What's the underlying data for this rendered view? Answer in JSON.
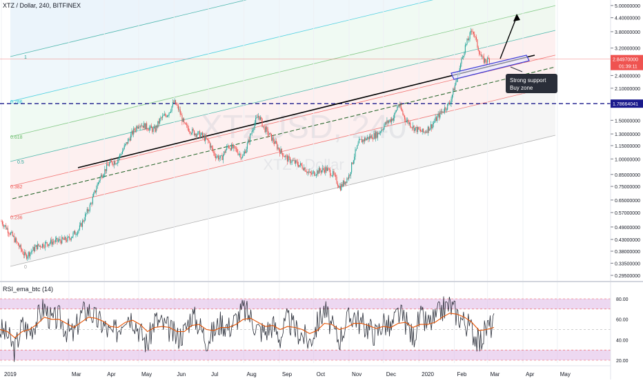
{
  "header": {
    "symbol_title": "XTZ / Dollar, 240, BITFINEX",
    "rsi_title": "RSI_ema_btc (14)"
  },
  "colors": {
    "candle_up": "#26a69a",
    "candle_down": "#ef5350",
    "support_box": "#3d3dd6",
    "dashed_support": "#1a1a8c",
    "rsi_line": "#2a2e39",
    "rsi_ema": "#e65100",
    "rsi_band": "#e1bee7"
  },
  "chart_data": [
    {
      "type": "candlestick",
      "title": "XTZ / Dollar, 240, BITFINEX",
      "watermark": "XTZUSD, 240",
      "watermark_sub": "XTZ / Dollar",
      "scale": "log",
      "ylim": [
        0.28,
        5.6
      ],
      "x_tick_labels": [
        "2019",
        "Mar",
        "Apr",
        "May",
        "Jun",
        "Jul",
        "Aug",
        "Sep",
        "Oct",
        "Nov",
        "Dec",
        "2020",
        "Feb",
        "Mar",
        "Apr",
        "May"
      ],
      "y_tick_labels": [
        "5.00000000",
        "4.40000000",
        "3.80000000",
        "3.20000000",
        "2.80000000",
        "2.40000000",
        "2.10000000",
        "1.80000000",
        "1.50000000",
        "1.30000000",
        "1.15000000",
        "1.00000000",
        "0.85000000",
        "0.75000000",
        "0.65000000",
        "0.57000000",
        "0.49000000",
        "0.43000000",
        "0.38000000",
        "0.33500000",
        "0.29500000"
      ],
      "last_price": "2.84970000",
      "countdown": "01:39:11",
      "horizontal_level": "1.78664041",
      "fib_levels": [
        "0",
        "0.236",
        "0.382",
        "0.5",
        "0.618",
        "0.786",
        "1",
        "1.272",
        "1.414"
      ],
      "annotation": "Strong support\nBuy zone",
      "price_path": [
        [
          "2019-01-01",
          0.52
        ],
        [
          "2019-01-10",
          0.45
        ],
        [
          "2019-01-22",
          0.36
        ],
        [
          "2019-02-01",
          0.4
        ],
        [
          "2019-02-15",
          0.42
        ],
        [
          "2019-02-28",
          0.43
        ],
        [
          "2019-03-10",
          0.48
        ],
        [
          "2019-03-20",
          0.62
        ],
        [
          "2019-03-28",
          0.82
        ],
        [
          "2019-04-05",
          0.95
        ],
        [
          "2019-04-12",
          0.98
        ],
        [
          "2019-04-18",
          1.12
        ],
        [
          "2019-04-25",
          1.3
        ],
        [
          "2019-05-01",
          1.45
        ],
        [
          "2019-05-08",
          1.4
        ],
        [
          "2019-05-15",
          1.35
        ],
        [
          "2019-05-20",
          1.52
        ],
        [
          "2019-05-27",
          1.62
        ],
        [
          "2019-06-01",
          1.82
        ],
        [
          "2019-06-05",
          1.68
        ],
        [
          "2019-06-10",
          1.42
        ],
        [
          "2019-06-18",
          1.32
        ],
        [
          "2019-06-25",
          1.28
        ],
        [
          "2019-07-01",
          1.2
        ],
        [
          "2019-07-06",
          1.05
        ],
        [
          "2019-07-12",
          1.0
        ],
        [
          "2019-07-18",
          1.15
        ],
        [
          "2019-07-25",
          1.1
        ],
        [
          "2019-07-31",
          1.02
        ],
        [
          "2019-08-05",
          1.2
        ],
        [
          "2019-08-10",
          1.45
        ],
        [
          "2019-08-14",
          1.58
        ],
        [
          "2019-08-18",
          1.4
        ],
        [
          "2019-08-25",
          1.25
        ],
        [
          "2019-09-01",
          1.1
        ],
        [
          "2019-09-08",
          1.0
        ],
        [
          "2019-09-15",
          0.96
        ],
        [
          "2019-09-22",
          0.92
        ],
        [
          "2019-09-28",
          0.85
        ],
        [
          "2019-10-05",
          0.88
        ],
        [
          "2019-10-12",
          0.9
        ],
        [
          "2019-10-18",
          0.85
        ],
        [
          "2019-10-24",
          0.74
        ],
        [
          "2019-11-01",
          0.84
        ],
        [
          "2019-11-05",
          1.02
        ],
        [
          "2019-11-10",
          1.2
        ],
        [
          "2019-11-18",
          1.25
        ],
        [
          "2019-11-26",
          1.3
        ],
        [
          "2019-12-03",
          1.45
        ],
        [
          "2019-12-10",
          1.55
        ],
        [
          "2019-12-14",
          1.78
        ],
        [
          "2019-12-20",
          1.52
        ],
        [
          "2019-12-28",
          1.38
        ],
        [
          "2020-01-05",
          1.32
        ],
        [
          "2020-01-12",
          1.42
        ],
        [
          "2020-01-20",
          1.62
        ],
        [
          "2020-01-28",
          1.8
        ],
        [
          "2020-02-04",
          2.4
        ],
        [
          "2020-02-10",
          3.2
        ],
        [
          "2020-02-14",
          3.6
        ],
        [
          "2020-02-17",
          3.9
        ],
        [
          "2020-02-21",
          3.3
        ],
        [
          "2020-02-25",
          2.85
        ],
        [
          "2020-02-28",
          2.8
        ],
        [
          "2020-03-03",
          2.85
        ]
      ]
    },
    {
      "type": "line",
      "title": "RSI_ema_btc (14)",
      "ylim": [
        15,
        90
      ],
      "y_tick_labels": [
        "80.00",
        "60.00",
        "40.00",
        "20.00"
      ],
      "series": [
        {
          "values": [
            50,
            45,
            30,
            55,
            48,
            60,
            72,
            58,
            62,
            50,
            45,
            65,
            70,
            60,
            55,
            45,
            50,
            66,
            62,
            48,
            35,
            60,
            55,
            50,
            42,
            48,
            65,
            55,
            40,
            48,
            58,
            52,
            60,
            70,
            62,
            50,
            48,
            55,
            42,
            60,
            50,
            45,
            38,
            55,
            70,
            52,
            40,
            58,
            65,
            55,
            52,
            45,
            58,
            50,
            66,
            58,
            42,
            62,
            55,
            60,
            70,
            74,
            65,
            58,
            50,
            36,
            52,
            55
          ]
        },
        {
          "values": [
            50,
            48,
            42,
            48,
            50,
            55,
            62,
            60,
            60,
            56,
            52,
            57,
            62,
            61,
            58,
            53,
            52,
            57,
            59,
            55,
            48,
            52,
            53,
            52,
            48,
            48,
            54,
            55,
            50,
            49,
            52,
            52,
            55,
            60,
            61,
            57,
            53,
            54,
            50,
            53,
            52,
            50,
            46,
            49,
            56,
            55,
            50,
            52,
            56,
            56,
            54,
            51,
            53,
            52,
            56,
            57,
            52,
            55,
            55,
            57,
            62,
            66,
            65,
            62,
            57,
            49,
            50,
            52
          ]
        }
      ]
    }
  ]
}
